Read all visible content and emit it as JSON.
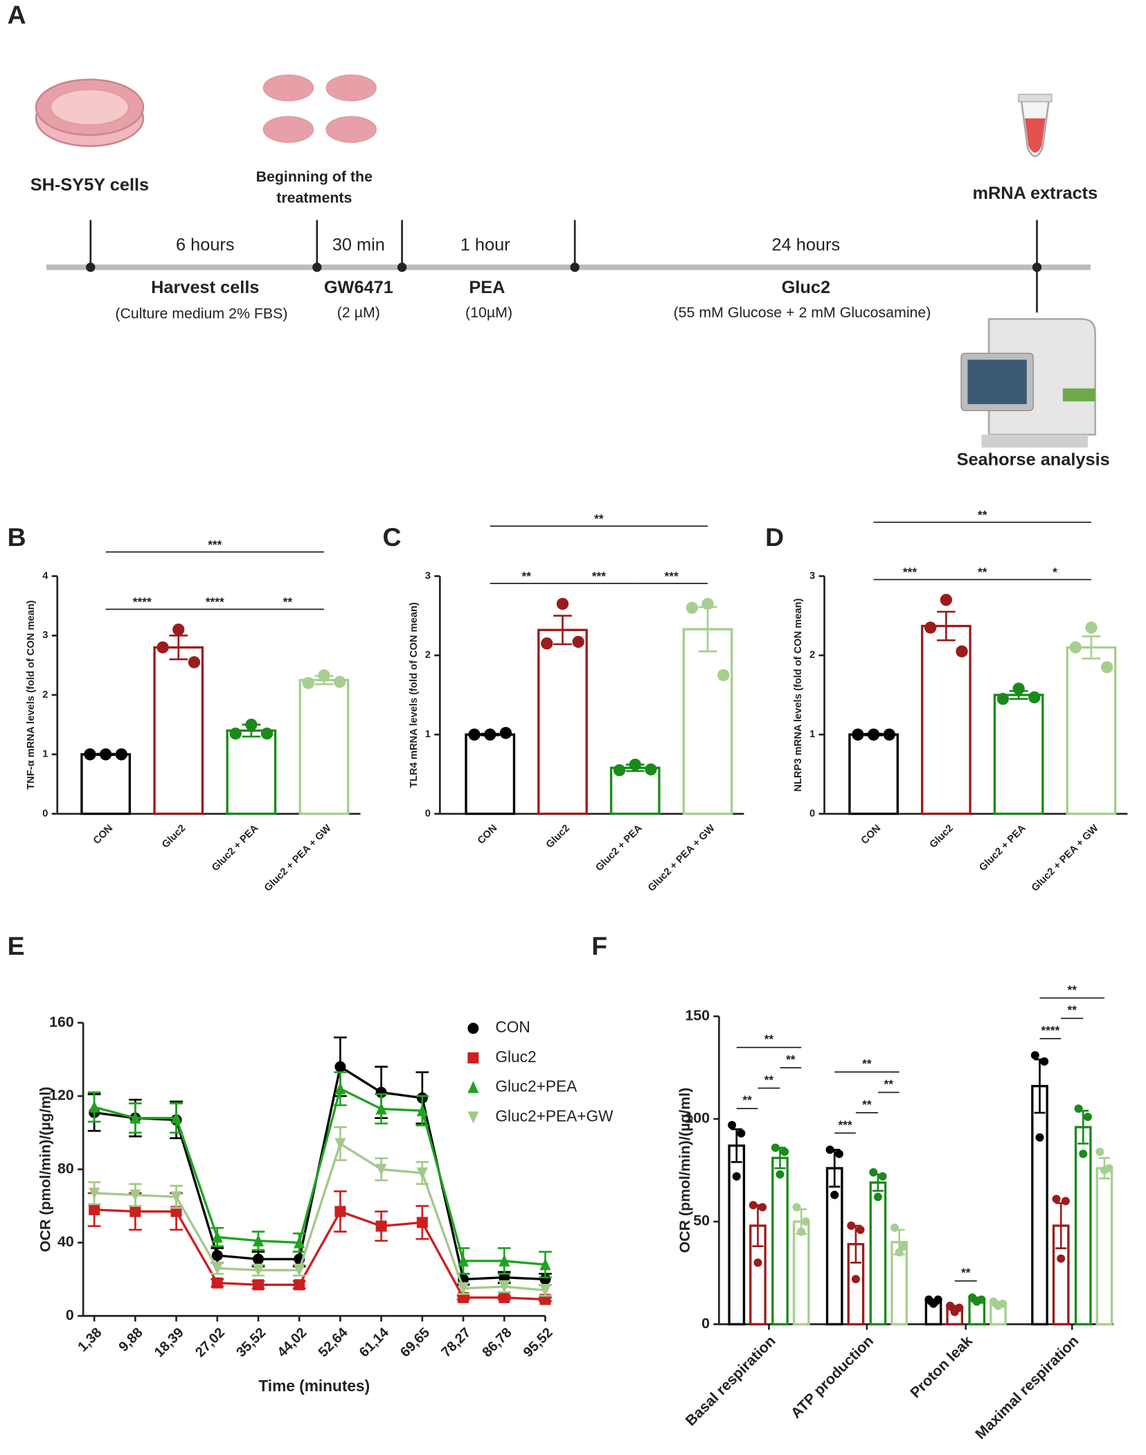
{
  "panel_a": {
    "label": "A",
    "cells": "SH-SY5Y cells",
    "treatment_start": [
      "Beginning of the",
      "treatments"
    ],
    "extract": "mRNA extracts",
    "seahorse": "Seahorse analysis",
    "steps": [
      {
        "duration": "6 hours",
        "name": "Harvest cells",
        "detail": "(Culture medium 2% FBS)"
      },
      {
        "duration": "30 min",
        "name": "GW6471",
        "detail": "(2 µM)"
      },
      {
        "duration": "1 hour",
        "name": "PEA",
        "detail": "(10µM)"
      },
      {
        "duration": "24 hours",
        "name": "Gluc2",
        "detail": "(55 mM Glucose + 2 mM Glucosamine)"
      }
    ]
  },
  "chart_data": [
    {
      "panel": "B",
      "type": "bar",
      "y_label": "TNF-α mRNA levels (fold of CON mean)",
      "categories": [
        "CON",
        "Gluc2",
        "Gluc2 + PEA",
        "Gluc2 + PEA + GW"
      ],
      "values": [
        1.0,
        2.8,
        1.4,
        2.25
      ],
      "errors": [
        0.01,
        0.2,
        0.1,
        0.07
      ],
      "points": [
        [
          1.0,
          1.0,
          1.0
        ],
        [
          3.1,
          2.8,
          2.55
        ],
        [
          1.5,
          1.35,
          1.35
        ],
        [
          2.33,
          2.2,
          2.22
        ]
      ],
      "colors": [
        "#000000",
        "#9b1c1c",
        "#1a8a1a",
        "#a6cf8f"
      ],
      "ylim": [
        0,
        4
      ],
      "yticks": [
        0,
        1,
        2,
        3,
        4
      ],
      "comparisons": [
        {
          "from": 0,
          "to": 1,
          "label": "****"
        },
        {
          "from": 1,
          "to": 2,
          "label": "****"
        },
        {
          "from": 2,
          "to": 3,
          "label": "**"
        },
        {
          "from": 0,
          "to": 3,
          "label": "***"
        }
      ]
    },
    {
      "panel": "C",
      "type": "bar",
      "y_label": "TLR4 mRNA levels (fold of CON mean)",
      "categories": [
        "CON",
        "Gluc2",
        "Gluc2 + PEA",
        "Gluc2 + PEA + GW"
      ],
      "values": [
        1.0,
        2.32,
        0.58,
        2.33
      ],
      "errors": [
        0.01,
        0.18,
        0.04,
        0.28
      ],
      "points": [
        [
          1.0,
          1.0,
          1.02
        ],
        [
          2.65,
          2.15,
          2.17
        ],
        [
          0.62,
          0.55,
          0.56
        ],
        [
          2.65,
          2.6,
          1.75
        ]
      ],
      "colors": [
        "#000000",
        "#9b1c1c",
        "#1a8a1a",
        "#a6cf8f"
      ],
      "ylim": [
        0,
        3
      ],
      "yticks": [
        0,
        1,
        2,
        3
      ],
      "comparisons": [
        {
          "from": 0,
          "to": 1,
          "label": "**"
        },
        {
          "from": 1,
          "to": 2,
          "label": "***"
        },
        {
          "from": 2,
          "to": 3,
          "label": "***"
        },
        {
          "from": 0,
          "to": 3,
          "label": "**"
        }
      ]
    },
    {
      "panel": "D",
      "type": "bar",
      "y_label": "NLRP3 mRNA levels (fold of CON mean)",
      "categories": [
        "CON",
        "Gluc2",
        "Gluc2 + PEA",
        "Gluc2 + PEA + GW"
      ],
      "values": [
        1.0,
        2.37,
        1.5,
        2.1
      ],
      "errors": [
        0.01,
        0.18,
        0.05,
        0.14
      ],
      "points": [
        [
          1.0,
          1.0,
          1.0
        ],
        [
          2.7,
          2.35,
          2.05
        ],
        [
          1.58,
          1.45,
          1.47
        ],
        [
          2.35,
          2.1,
          1.85
        ]
      ],
      "colors": [
        "#000000",
        "#9b1c1c",
        "#1a8a1a",
        "#a6cf8f"
      ],
      "ylim": [
        0,
        3
      ],
      "yticks": [
        0,
        1,
        2,
        3
      ],
      "comparisons": [
        {
          "from": 0,
          "to": 1,
          "label": "***"
        },
        {
          "from": 1,
          "to": 2,
          "label": "**"
        },
        {
          "from": 2,
          "to": 3,
          "label": "*"
        },
        {
          "from": 0,
          "to": 3,
          "label": "**"
        }
      ]
    },
    {
      "panel": "E",
      "type": "line",
      "x_label": "Time (minutes)",
      "y_label": "OCR (pmol/min)/(µg/ml)",
      "categories": [
        "1,38",
        "9,88",
        "18,39",
        "27,02",
        "35,52",
        "44,02",
        "52,64",
        "61,14",
        "69,65",
        "78,27",
        "86,78",
        "95,52"
      ],
      "series": [
        {
          "name": "CON",
          "color": "#000000",
          "marker": "circle",
          "values": [
            111,
            108,
            107,
            33,
            31,
            31,
            136,
            122,
            119,
            20,
            21,
            20
          ],
          "errors": [
            10,
            10,
            10,
            4,
            4,
            4,
            16,
            14,
            14,
            3,
            3,
            3
          ]
        },
        {
          "name": "Gluc2",
          "color": "#cc1f1f",
          "marker": "square",
          "values": [
            58,
            57,
            57,
            18,
            17,
            17,
            57,
            49,
            51,
            10,
            10,
            9
          ],
          "errors": [
            9,
            10,
            10,
            2,
            2,
            2,
            11,
            8,
            9,
            1,
            1,
            1
          ]
        },
        {
          "name": "Gluc2+PEA",
          "color": "#1fa31f",
          "marker": "triangle",
          "values": [
            114,
            108,
            108,
            43,
            41,
            40,
            124,
            113,
            112,
            30,
            30,
            28
          ],
          "errors": [
            8,
            8,
            8,
            5,
            5,
            5,
            9,
            8,
            8,
            7,
            7,
            7
          ]
        },
        {
          "name": "Gluc2+PEA+GW",
          "color": "#a2c98a",
          "marker": "triangle-down",
          "values": [
            67,
            66,
            65,
            26,
            25,
            25,
            94,
            80,
            78,
            15,
            16,
            14
          ],
          "errors": [
            6,
            6,
            6,
            3,
            3,
            3,
            9,
            6,
            6,
            3,
            3,
            3
          ]
        }
      ],
      "ylim": [
        0,
        160
      ],
      "yticks": [
        0,
        40,
        80,
        120,
        160
      ],
      "legend": "upper right"
    },
    {
      "panel": "F",
      "type": "grouped_bar",
      "y_label": "OCR (pmol/min)/(µg/ml)",
      "categories": [
        "Basal respiration",
        "ATP production",
        "Proton leak",
        "Maximal respiration"
      ],
      "series": [
        {
          "color": "#000000",
          "values": [
            87,
            76,
            11,
            116
          ],
          "errors": [
            8,
            9,
            1,
            13
          ],
          "points": [
            [
              97,
              93,
              72
            ],
            [
              85,
              83,
              63
            ],
            [
              12,
              12,
              10
            ],
            [
              131,
              128,
              91
            ]
          ]
        },
        {
          "color": "#9b1c1c",
          "values": [
            48,
            39,
            8,
            48
          ],
          "errors": [
            10,
            9,
            1,
            11
          ],
          "points": [
            [
              58,
              57,
              30
            ],
            [
              48,
              46,
              22
            ],
            [
              9,
              8,
              6
            ],
            [
              61,
              60,
              32
            ]
          ]
        },
        {
          "color": "#1a8a1a",
          "values": [
            81,
            69,
            12,
            96
          ],
          "errors": [
            5,
            4,
            1,
            8
          ],
          "points": [
            [
              86,
              84,
              73
            ],
            [
              74,
              72,
              62
            ],
            [
              13,
              12,
              11
            ],
            [
              105,
              101,
              83
            ]
          ]
        },
        {
          "color": "#a6cf8f",
          "values": [
            50,
            40,
            10,
            76
          ],
          "errors": [
            6,
            6,
            1,
            5
          ],
          "points": [
            [
              57,
              50,
              45
            ],
            [
              47,
              38,
              35
            ],
            [
              11,
              10,
              9
            ],
            [
              84,
              76,
              75
            ]
          ]
        }
      ],
      "ylim": [
        0,
        150
      ],
      "yticks": [
        0,
        50,
        100,
        150
      ],
      "comparisons": [
        {
          "group": 0,
          "from": 0,
          "to": 1,
          "label": "**"
        },
        {
          "group": 0,
          "from": 1,
          "to": 2,
          "label": "**"
        },
        {
          "group": 0,
          "from": 2,
          "to": 3,
          "label": "**"
        },
        {
          "group": 0,
          "from": 0,
          "to": 3,
          "label": "**"
        },
        {
          "group": 1,
          "from": 0,
          "to": 1,
          "label": "***"
        },
        {
          "group": 1,
          "from": 1,
          "to": 2,
          "label": "**"
        },
        {
          "group": 1,
          "from": 2,
          "to": 3,
          "label": "**"
        },
        {
          "group": 1,
          "from": 0,
          "to": 3,
          "label": "**"
        },
        {
          "group": 2,
          "from": 1,
          "to": 2,
          "label": "**"
        },
        {
          "group": 3,
          "from": 0,
          "to": 1,
          "label": "****"
        },
        {
          "group": 3,
          "from": 1,
          "to": 2,
          "label": "**"
        },
        {
          "group": 3,
          "from": 0,
          "to": 3,
          "label": "**"
        }
      ]
    }
  ]
}
